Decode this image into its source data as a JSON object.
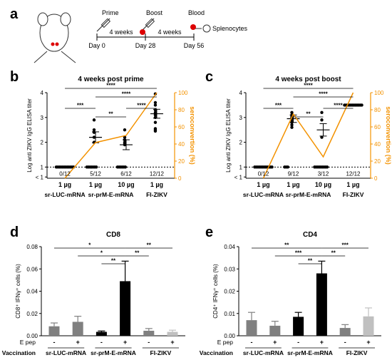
{
  "accent_orange": "#f39200",
  "panel_a": {
    "letter": "a",
    "prime_label": "Prime",
    "boost_label": "Boost",
    "blood_label": "Blood",
    "interval1": "4 weeks",
    "interval2": "4 weeks",
    "days": [
      "Day 0",
      "Day 28",
      "Day 56"
    ],
    "splenocytes_label": "Splenocytes"
  },
  "chart_data": [
    {
      "panel": "b",
      "type": "scatter",
      "title": "4 weeks post prime",
      "ylabel": "Log anti ZIKV IgG  ELISA titer",
      "y2label": "seroconvertion (%)",
      "y_ticks": [
        "< 1",
        "1",
        "2",
        "3",
        "4"
      ],
      "y2_ticks": [
        "0",
        "20",
        "40",
        "60",
        "80",
        "100"
      ],
      "ylim": [
        0.55,
        4
      ],
      "y2lim": [
        0,
        100
      ],
      "doses": [
        "1 µg",
        "1 µg",
        "10 µg",
        "1 µg"
      ],
      "group_labels": [
        "sr-LUC-mRNA",
        "sr-prM-E-mRNA",
        "FI-ZIKV"
      ],
      "ratios": [
        "0/12",
        "5/12",
        "6/12",
        "12/12"
      ],
      "means": [
        1,
        2.2,
        1.9,
        3.15
      ],
      "sems": [
        0,
        0.22,
        0.2,
        0.18
      ],
      "seroconversion": [
        0,
        41.7,
        50,
        100
      ],
      "points": [
        [
          1,
          1,
          1,
          1,
          1,
          1,
          1,
          1,
          1,
          1,
          1,
          1
        ],
        [
          2.9,
          2.5,
          2.4,
          2.2,
          2.0,
          1,
          1,
          1,
          1,
          1,
          1,
          1
        ],
        [
          2.5,
          2.2,
          2.1,
          2.0,
          1.95,
          1.9,
          1,
          1,
          1,
          1,
          1,
          1
        ],
        [
          3.95,
          3.6,
          3.5,
          3.3,
          3.2,
          3.15,
          3.1,
          3.0,
          2.8,
          2.55,
          2.5,
          2.45
        ]
      ],
      "significance": [
        "****",
        "****",
        "***",
        "****",
        "**"
      ]
    },
    {
      "panel": "c",
      "type": "scatter",
      "title": "4 weeks post boost",
      "ylabel": "Log anti ZIKV IgG  ELISA titer",
      "y2label": "seroconvertion (%)",
      "y_ticks": [
        "< 1",
        "1",
        "2",
        "3",
        "4"
      ],
      "y2_ticks": [
        "0",
        "20",
        "40",
        "60",
        "80",
        "100"
      ],
      "ylim": [
        0.55,
        4
      ],
      "y2lim": [
        0,
        100
      ],
      "doses": [
        "1 µg",
        "1 µg",
        "10 µg",
        "1 µg"
      ],
      "group_labels": [
        "sr-LUC-mRNA",
        "sr-prM-E-mRNA",
        "FI-ZIKV"
      ],
      "ratios": [
        "0/12",
        "9/12",
        "3/12",
        "12/12"
      ],
      "means": [
        1,
        2.95,
        2.5,
        3.5
      ],
      "sems": [
        0,
        0.15,
        0.25,
        0
      ],
      "seroconversion": [
        0,
        75,
        25,
        100
      ],
      "points": [
        [
          1,
          1,
          1,
          1,
          1,
          1,
          1,
          1,
          1,
          1,
          1,
          1
        ],
        [
          3.2,
          3.1,
          3.05,
          3.0,
          2.95,
          2.9,
          2.8,
          2.7,
          2.6,
          1,
          1,
          1
        ],
        [
          3.2,
          2.9,
          2.2,
          1,
          1,
          1,
          1,
          1,
          1,
          1,
          1,
          1
        ],
        [
          3.5,
          3.5,
          3.5,
          3.5,
          3.5,
          3.5,
          3.5,
          3.5,
          3.5,
          3.5,
          3.5,
          3.5
        ]
      ],
      "significance": [
        "****",
        "****",
        "***",
        "****",
        "**"
      ]
    },
    {
      "panel": "d",
      "type": "bar",
      "title": "CD8",
      "ylabel": "CD8⁺ IFNγ⁺ cells (%)",
      "y_ticks": [
        "0.00",
        "0.02",
        "0.04",
        "0.06",
        "0.08"
      ],
      "ylim": [
        0,
        0.08
      ],
      "epep_label": "E pep",
      "vaccination_label": "Vaccination",
      "epep_values": [
        "-",
        "+",
        "-",
        "+",
        "-",
        "+"
      ],
      "group_labels": [
        "sr-LUC-mRNA",
        "sr-prM-E-mRNA",
        "FI-ZIKV"
      ],
      "values": [
        0.0085,
        0.0125,
        0.0035,
        0.049,
        0.0045,
        0.0035
      ],
      "errors": [
        0.003,
        0.005,
        0.0008,
        0.018,
        0.002,
        0.0015
      ],
      "colors": [
        "#808080",
        "#808080",
        "#000000",
        "#000000",
        "#808080",
        "#c0c0c0"
      ],
      "significance": [
        "*",
        "*",
        "**",
        "**",
        "**"
      ]
    },
    {
      "panel": "e",
      "type": "bar",
      "title": "CD4",
      "ylabel": "CD4⁺ IFNγ⁺ cells (%)",
      "y_ticks": [
        "0.00",
        "0.01",
        "0.02",
        "0.03",
        "0.04"
      ],
      "ylim": [
        0,
        0.04
      ],
      "epep_label": "E pep",
      "vaccination_label": "Vaccination",
      "epep_values": [
        "-",
        "+",
        "-",
        "+",
        "-",
        "+"
      ],
      "group_labels": [
        "sr-LUC-mRNA",
        "sr-prM-E-mRNA",
        "FI-ZIKV"
      ],
      "values": [
        0.007,
        0.0045,
        0.0085,
        0.028,
        0.0035,
        0.0087
      ],
      "errors": [
        0.0035,
        0.002,
        0.002,
        0.0055,
        0.0015,
        0.0038
      ],
      "colors": [
        "#808080",
        "#808080",
        "#000000",
        "#000000",
        "#808080",
        "#c0c0c0"
      ],
      "significance": [
        "**",
        "***",
        "**",
        "***",
        "**"
      ]
    }
  ]
}
